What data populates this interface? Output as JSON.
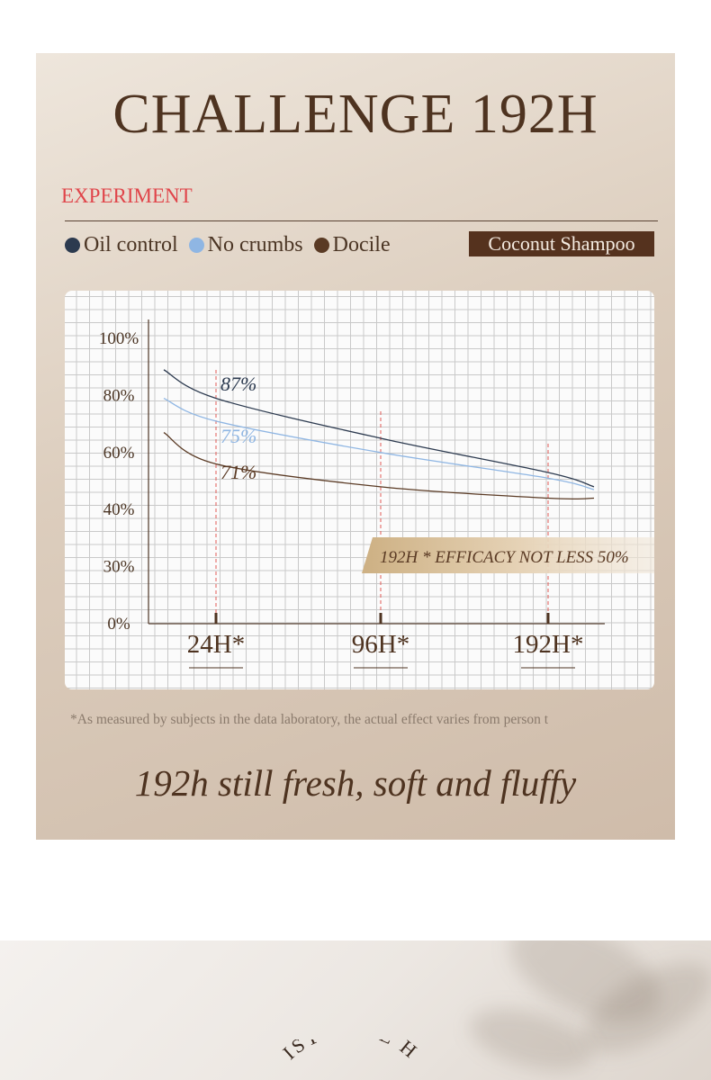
{
  "page": {
    "title": "CHALLENGE 192H",
    "section_label": "EXPERIMENT",
    "badge": "Coconut Shampoo",
    "footnote": "*As measured by subjects in the data laboratory, the actual effect varies from person t",
    "tagline": "192h still fresh, soft and fluffy",
    "bottom_arc_text": "ISTURIZE H"
  },
  "legend": [
    {
      "label": "Oil control",
      "color": "#2c3a4f"
    },
    {
      "label": "No crumbs",
      "color": "#8fb6e3"
    },
    {
      "label": "Docile",
      "color": "#5a3a24"
    }
  ],
  "colors": {
    "accent": "#e0454a",
    "brown": "#4e3320"
  },
  "chart_data": {
    "type": "line",
    "y_ticks": [
      "100%",
      "80%",
      "60%",
      "40%",
      "30%",
      "0%"
    ],
    "x_ticks": [
      "24H*",
      "96H*",
      "192H*"
    ],
    "series": [
      {
        "name": "Oil control",
        "color": "#2c3a4f",
        "x": [
          0,
          24,
          96,
          192,
          210
        ],
        "y": [
          89,
          79,
          65,
          53,
          48
        ],
        "label": "87%"
      },
      {
        "name": "No crumbs",
        "color": "#8fb6e3",
        "x": [
          0,
          24,
          96,
          192,
          210
        ],
        "y": [
          79,
          71,
          60,
          51,
          47
        ],
        "label": "75%"
      },
      {
        "name": "Docile",
        "color": "#5a3a24",
        "x": [
          0,
          24,
          96,
          192,
          210
        ],
        "y": [
          67,
          56,
          48,
          44,
          44
        ],
        "label": "71%"
      }
    ],
    "annotation": "192H * EFFICACY NOT LESS  50%"
  }
}
